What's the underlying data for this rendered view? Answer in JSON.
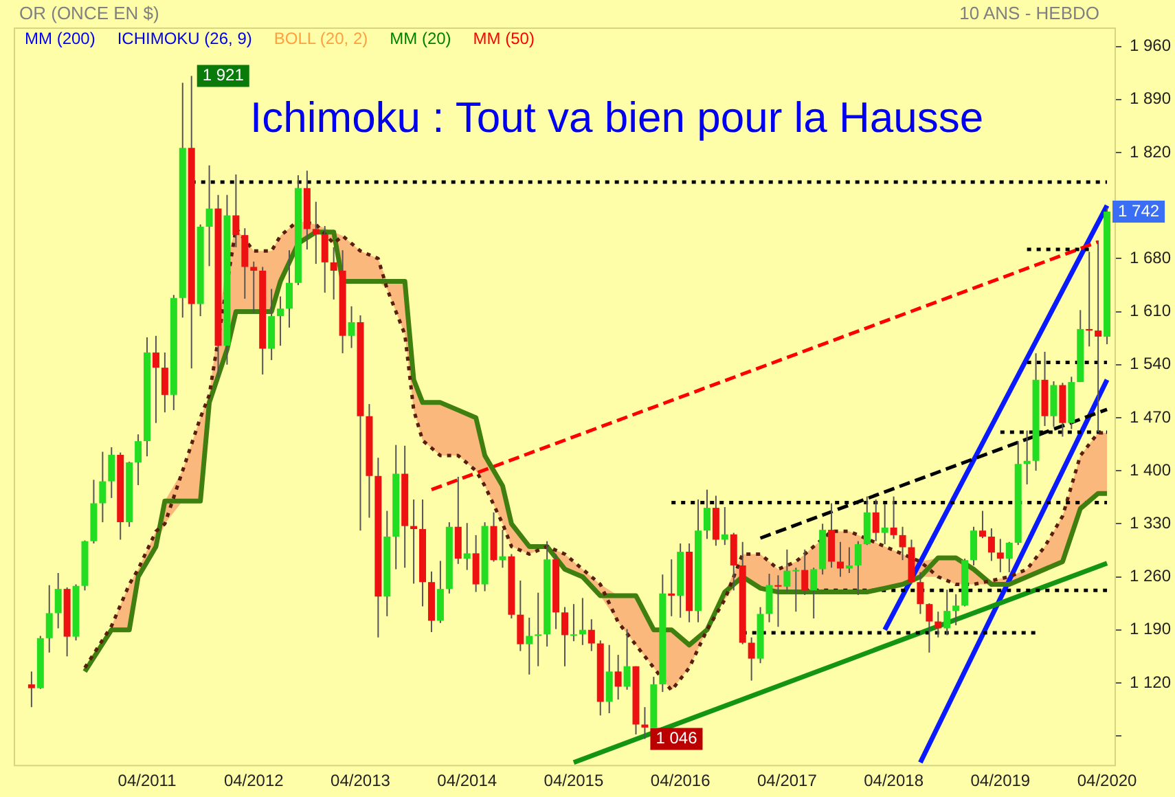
{
  "chart_data": {
    "type": "candlestick",
    "title": "Ichimoku : Tout va bien pour la Hausse",
    "subtitle": "OR (ONCE EN $)",
    "annotations": [
      "10 ANS - HEBDO",
      {
        "text": "1 921",
        "x": "2011-09",
        "y": 1921
      },
      {
        "text": "1 742",
        "x": "2020-04",
        "y": 1742
      },
      {
        "text": "1 046",
        "x": "2015-12",
        "y": 1046
      }
    ],
    "xlim": [
      "2010-01",
      "2020-05"
    ],
    "xticks": [
      {
        "value": "2011-04",
        "label": "04/2011"
      },
      {
        "value": "2012-04",
        "label": "04/2012"
      },
      {
        "value": "2013-04",
        "label": "04/2013"
      },
      {
        "value": "2014-04",
        "label": "04/2014"
      },
      {
        "value": "2015-04",
        "label": "04/2015"
      },
      {
        "value": "2016-04",
        "label": "04/2016"
      },
      {
        "value": "2017-04",
        "label": "04/2017"
      },
      {
        "value": "2018-04",
        "label": "04/2018"
      },
      {
        "value": "2019-04",
        "label": "04/2019"
      },
      {
        "value": "2020-04",
        "label": "04/2020"
      }
    ],
    "ylim": [
      1010,
      1985
    ],
    "yticks": [
      {
        "value": 1050,
        "label": null
      },
      {
        "value": 1120,
        "label": "1 120"
      },
      {
        "value": 1190,
        "label": "1 190"
      },
      {
        "value": 1260,
        "label": "1 260"
      },
      {
        "value": 1330,
        "label": "1 330"
      },
      {
        "value": 1400,
        "label": "1 400"
      },
      {
        "value": 1470,
        "label": "1 470"
      },
      {
        "value": 1540,
        "label": "1 540"
      },
      {
        "value": 1610,
        "label": "1 610"
      },
      {
        "value": 1680,
        "label": "1 680"
      },
      {
        "value": 1750,
        "label": null
      },
      {
        "value": 1820,
        "label": "1 820"
      },
      {
        "value": 1890,
        "label": "1 890"
      },
      {
        "value": 1960,
        "label": "1 960"
      }
    ],
    "x": [
      "2010-03",
      "2010-04",
      "2010-05",
      "2010-06",
      "2010-07",
      "2010-08",
      "2010-09",
      "2010-10",
      "2010-11",
      "2010-12",
      "2011-01",
      "2011-02",
      "2011-03",
      "2011-04",
      "2011-05",
      "2011-06",
      "2011-07",
      "2011-08",
      "2011-09",
      "2011-10",
      "2011-11",
      "2011-12",
      "2012-01",
      "2012-02",
      "2012-03",
      "2012-04",
      "2012-05",
      "2012-06",
      "2012-07",
      "2012-08",
      "2012-09",
      "2012-10",
      "2012-11",
      "2012-12",
      "2013-01",
      "2013-02",
      "2013-03",
      "2013-04",
      "2013-05",
      "2013-06",
      "2013-07",
      "2013-08",
      "2013-09",
      "2013-10",
      "2013-11",
      "2013-12",
      "2014-01",
      "2014-02",
      "2014-03",
      "2014-04",
      "2014-05",
      "2014-06",
      "2014-07",
      "2014-08",
      "2014-09",
      "2014-10",
      "2014-11",
      "2014-12",
      "2015-01",
      "2015-02",
      "2015-03",
      "2015-04",
      "2015-05",
      "2015-06",
      "2015-07",
      "2015-08",
      "2015-09",
      "2015-10",
      "2015-11",
      "2015-12",
      "2016-01",
      "2016-02",
      "2016-03",
      "2016-04",
      "2016-05",
      "2016-06",
      "2016-07",
      "2016-08",
      "2016-09",
      "2016-10",
      "2016-11",
      "2016-12",
      "2017-01",
      "2017-02",
      "2017-03",
      "2017-04",
      "2017-05",
      "2017-06",
      "2017-07",
      "2017-08",
      "2017-09",
      "2017-10",
      "2017-11",
      "2017-12",
      "2018-01",
      "2018-02",
      "2018-03",
      "2018-04",
      "2018-05",
      "2018-06",
      "2018-07",
      "2018-08",
      "2018-09",
      "2018-10",
      "2018-11",
      "2018-12",
      "2019-01",
      "2019-02",
      "2019-03",
      "2019-04",
      "2019-05",
      "2019-06",
      "2019-07",
      "2019-08",
      "2019-09",
      "2019-10",
      "2019-11",
      "2019-12",
      "2020-01",
      "2020-02",
      "2020-03",
      "2020-04"
    ],
    "ohlc": [
      [
        1118,
        1135,
        1088,
        1113
      ],
      [
        1113,
        1182,
        1112,
        1179
      ],
      [
        1179,
        1249,
        1160,
        1212
      ],
      [
        1212,
        1265,
        1192,
        1244
      ],
      [
        1244,
        1246,
        1155,
        1181
      ],
      [
        1181,
        1250,
        1176,
        1248
      ],
      [
        1248,
        1308,
        1242,
        1307
      ],
      [
        1307,
        1388,
        1304,
        1357
      ],
      [
        1357,
        1425,
        1332,
        1386
      ],
      [
        1386,
        1431,
        1364,
        1421
      ],
      [
        1421,
        1424,
        1309,
        1332
      ],
      [
        1332,
        1412,
        1326,
        1411
      ],
      [
        1411,
        1448,
        1381,
        1439
      ],
      [
        1439,
        1576,
        1419,
        1556
      ],
      [
        1556,
        1578,
        1463,
        1536
      ],
      [
        1536,
        1556,
        1477,
        1500
      ],
      [
        1500,
        1632,
        1480,
        1628
      ],
      [
        1628,
        1912,
        1602,
        1826
      ],
      [
        1826,
        1921,
        1535,
        1620
      ],
      [
        1620,
        1725,
        1604,
        1722
      ],
      [
        1722,
        1803,
        1670,
        1746
      ],
      [
        1746,
        1764,
        1523,
        1565
      ],
      [
        1565,
        1764,
        1540,
        1737
      ],
      [
        1737,
        1791,
        1695,
        1711
      ],
      [
        1711,
        1720,
        1627,
        1669
      ],
      [
        1669,
        1676,
        1608,
        1664
      ],
      [
        1664,
        1669,
        1527,
        1561
      ],
      [
        1561,
        1640,
        1546,
        1604
      ],
      [
        1604,
        1630,
        1565,
        1614
      ],
      [
        1614,
        1691,
        1589,
        1648
      ],
      [
        1648,
        1790,
        1645,
        1773
      ],
      [
        1773,
        1796,
        1692,
        1719
      ],
      [
        1719,
        1755,
        1673,
        1712
      ],
      [
        1712,
        1723,
        1635,
        1675
      ],
      [
        1675,
        1695,
        1626,
        1664
      ],
      [
        1664,
        1691,
        1555,
        1578
      ],
      [
        1578,
        1617,
        1562,
        1596
      ],
      [
        1596,
        1605,
        1321,
        1472
      ],
      [
        1472,
        1488,
        1338,
        1393
      ],
      [
        1393,
        1417,
        1180,
        1234
      ],
      [
        1234,
        1347,
        1208,
        1313
      ],
      [
        1313,
        1434,
        1270,
        1396
      ],
      [
        1396,
        1433,
        1272,
        1327
      ],
      [
        1327,
        1362,
        1251,
        1323
      ],
      [
        1323,
        1362,
        1221,
        1253
      ],
      [
        1253,
        1267,
        1187,
        1202
      ],
      [
        1202,
        1281,
        1199,
        1244
      ],
      [
        1244,
        1332,
        1238,
        1326
      ],
      [
        1326,
        1392,
        1277,
        1284
      ],
      [
        1284,
        1331,
        1269,
        1291
      ],
      [
        1291,
        1315,
        1240,
        1250
      ],
      [
        1250,
        1332,
        1241,
        1327
      ],
      [
        1327,
        1345,
        1280,
        1282
      ],
      [
        1282,
        1322,
        1272,
        1287
      ],
      [
        1287,
        1290,
        1205,
        1210
      ],
      [
        1210,
        1255,
        1162,
        1171
      ],
      [
        1171,
        1206,
        1131,
        1182
      ],
      [
        1182,
        1239,
        1142,
        1184
      ],
      [
        1184,
        1307,
        1168,
        1283
      ],
      [
        1283,
        1290,
        1191,
        1213
      ],
      [
        1213,
        1220,
        1142,
        1183
      ],
      [
        1183,
        1224,
        1175,
        1184
      ],
      [
        1184,
        1232,
        1170,
        1190
      ],
      [
        1190,
        1204,
        1162,
        1172
      ],
      [
        1172,
        1176,
        1077,
        1095
      ],
      [
        1095,
        1170,
        1080,
        1135
      ],
      [
        1135,
        1157,
        1098,
        1115
      ],
      [
        1115,
        1191,
        1111,
        1142
      ],
      [
        1142,
        1142,
        1052,
        1065
      ],
      [
        1065,
        1088,
        1046,
        1061
      ],
      [
        1061,
        1128,
        1061,
        1118
      ],
      [
        1118,
        1263,
        1108,
        1238
      ],
      [
        1238,
        1283,
        1208,
        1235
      ],
      [
        1235,
        1304,
        1206,
        1293
      ],
      [
        1293,
        1304,
        1200,
        1215
      ],
      [
        1215,
        1362,
        1200,
        1321
      ],
      [
        1321,
        1375,
        1310,
        1351
      ],
      [
        1351,
        1367,
        1301,
        1309
      ],
      [
        1309,
        1352,
        1302,
        1316
      ],
      [
        1316,
        1318,
        1242,
        1275
      ],
      [
        1275,
        1306,
        1171,
        1173
      ],
      [
        1173,
        1180,
        1123,
        1152
      ],
      [
        1152,
        1220,
        1146,
        1211
      ],
      [
        1211,
        1264,
        1200,
        1249
      ],
      [
        1249,
        1262,
        1194,
        1247
      ],
      [
        1247,
        1296,
        1240,
        1268
      ],
      [
        1268,
        1272,
        1214,
        1269
      ],
      [
        1269,
        1296,
        1236,
        1242
      ],
      [
        1242,
        1272,
        1205,
        1270
      ],
      [
        1270,
        1330,
        1263,
        1322
      ],
      [
        1322,
        1357,
        1272,
        1280
      ],
      [
        1280,
        1306,
        1260,
        1271
      ],
      [
        1271,
        1299,
        1265,
        1275
      ],
      [
        1275,
        1307,
        1236,
        1303
      ],
      [
        1303,
        1366,
        1302,
        1345
      ],
      [
        1345,
        1362,
        1307,
        1318
      ],
      [
        1318,
        1356,
        1303,
        1325
      ],
      [
        1325,
        1366,
        1310,
        1315
      ],
      [
        1315,
        1326,
        1282,
        1299
      ],
      [
        1299,
        1309,
        1250,
        1253
      ],
      [
        1253,
        1266,
        1211,
        1224
      ],
      [
        1224,
        1225,
        1160,
        1201
      ],
      [
        1201,
        1214,
        1180,
        1192
      ],
      [
        1192,
        1243,
        1183,
        1215
      ],
      [
        1215,
        1237,
        1196,
        1222
      ],
      [
        1222,
        1284,
        1221,
        1282
      ],
      [
        1282,
        1326,
        1275,
        1321
      ],
      [
        1321,
        1347,
        1311,
        1313
      ],
      [
        1313,
        1324,
        1281,
        1292
      ],
      [
        1292,
        1310,
        1266,
        1284
      ],
      [
        1284,
        1306,
        1266,
        1305
      ],
      [
        1305,
        1439,
        1302,
        1409
      ],
      [
        1409,
        1453,
        1382,
        1413
      ],
      [
        1413,
        1555,
        1400,
        1520
      ],
      [
        1520,
        1557,
        1459,
        1472
      ],
      [
        1472,
        1518,
        1458,
        1513
      ],
      [
        1513,
        1516,
        1445,
        1463
      ],
      [
        1463,
        1524,
        1455,
        1517
      ],
      [
        1517,
        1612,
        1517,
        1587
      ],
      [
        1587,
        1689,
        1564,
        1585
      ],
      [
        1585,
        1704,
        1451,
        1577
      ],
      [
        1577,
        1747,
        1567,
        1742
      ]
    ],
    "colors": [
      "#ee1111",
      "#22dd22",
      "#22dd22",
      "#22dd22",
      "#ee1111",
      "#22dd22",
      "#22dd22",
      "#22dd22",
      "#22dd22",
      "#22dd22",
      "#ee1111",
      "#22dd22",
      "#22dd22",
      "#22dd22",
      "#ee1111",
      "#ee1111",
      "#22dd22",
      "#22dd22",
      "#ee1111",
      "#22dd22",
      "#22dd22",
      "#ee1111",
      "#22dd22",
      "#ee1111",
      "#ee1111",
      "#ee1111",
      "#ee1111",
      "#22dd22",
      "#22dd22",
      "#22dd22",
      "#22dd22",
      "#ee1111",
      "#ee1111",
      "#ee1111",
      "#ee1111",
      "#ee1111",
      "#22dd22",
      "#ee1111",
      "#ee1111",
      "#ee1111",
      "#22dd22",
      "#22dd22",
      "#ee1111",
      "#ee1111",
      "#ee1111",
      "#ee1111",
      "#22dd22",
      "#22dd22",
      "#ee1111",
      "#22dd22",
      "#ee1111",
      "#22dd22",
      "#ee1111",
      "#22dd22",
      "#ee1111",
      "#ee1111",
      "#22dd22",
      "#22dd22",
      "#22dd22",
      "#ee1111",
      "#ee1111",
      "#22dd22",
      "#22dd22",
      "#ee1111",
      "#ee1111",
      "#22dd22",
      "#ee1111",
      "#22dd22",
      "#ee1111",
      "#ee1111",
      "#22dd22",
      "#22dd22",
      "#ee1111",
      "#22dd22",
      "#ee1111",
      "#22dd22",
      "#22dd22",
      "#ee1111",
      "#22dd22",
      "#ee1111",
      "#ee1111",
      "#ee1111",
      "#22dd22",
      "#22dd22",
      "#ee1111",
      "#22dd22",
      "#22dd22",
      "#ee1111",
      "#22dd22",
      "#22dd22",
      "#ee1111",
      "#ee1111",
      "#22dd22",
      "#22dd22",
      "#22dd22",
      "#ee1111",
      "#22dd22",
      "#ee1111",
      "#ee1111",
      "#ee1111",
      "#ee1111",
      "#ee1111",
      "#ee1111",
      "#22dd22",
      "#22dd22",
      "#22dd22",
      "#22dd22",
      "#ee1111",
      "#ee1111",
      "#ee1111",
      "#22dd22",
      "#22dd22",
      "#22dd22",
      "#22dd22",
      "#ee1111",
      "#22dd22",
      "#ee1111",
      "#22dd22",
      "#22dd22",
      "#ee1111",
      "#ee1111",
      "#22dd22"
    ],
    "series": [
      {
        "name": "MM (200)",
        "type": "line",
        "color": "#0000ff",
        "values": [
          null,
          null,
          null,
          null,
          null,
          null,
          null,
          null,
          null,
          null,
          null,
          null,
          null,
          null,
          null,
          null,
          null,
          null,
          null,
          null,
          null,
          null,
          null,
          null,
          null,
          null,
          null,
          null,
          null,
          null,
          null,
          null,
          null,
          null,
          null,
          null,
          null,
          null,
          null,
          null,
          null,
          null,
          null,
          null,
          null,
          null,
          null,
          null,
          null,
          null,
          null,
          null,
          null,
          null,
          null,
          null,
          null,
          null,
          null,
          null,
          null,
          null,
          null,
          null,
          null,
          null,
          null,
          null,
          null,
          null,
          null,
          null,
          null,
          null,
          null,
          null,
          null,
          null,
          null,
          null,
          null,
          null,
          null,
          null,
          null,
          null,
          null,
          null,
          null,
          null,
          null,
          null,
          null,
          null,
          null,
          null,
          null,
          null,
          null,
          null,
          null,
          null,
          null,
          null,
          null,
          null,
          null,
          null,
          null,
          null,
          null,
          null,
          null,
          null,
          null,
          null,
          null,
          null,
          null,
          null,
          null,
          null
        ]
      },
      {
        "name": "ICHIMOKU (26, 9)",
        "type": "line",
        "color": "#0000ee",
        "values": [
          null,
          null,
          null,
          null,
          null,
          null,
          null,
          null,
          null,
          null,
          null,
          null,
          null,
          null,
          null,
          null,
          null,
          null,
          null,
          null,
          null,
          null,
          null,
          null,
          null,
          null,
          null,
          null,
          null,
          null,
          null,
          null,
          null,
          null,
          null,
          null,
          null,
          null,
          null,
          null,
          null,
          null,
          null,
          null,
          null,
          null,
          null,
          null,
          null,
          null,
          null,
          null,
          null,
          null,
          null,
          null,
          null,
          null,
          null,
          null,
          null,
          null,
          null,
          null,
          null,
          null,
          null,
          null,
          null,
          null,
          null,
          null,
          null,
          null,
          null,
          null,
          null,
          null,
          null,
          null,
          null,
          null,
          null,
          null,
          null,
          null,
          null,
          null,
          null,
          null,
          null,
          null,
          null,
          null,
          null,
          null,
          null,
          null,
          null,
          null,
          null,
          null,
          null,
          null,
          null,
          null,
          null,
          null,
          null,
          null,
          null,
          null,
          null,
          null,
          null,
          null,
          null,
          null,
          null,
          null,
          null,
          null
        ]
      },
      {
        "name": "BOLL (20, 2)",
        "type": "line",
        "color": "#ffa040",
        "values": [
          null,
          null,
          null,
          null,
          null,
          null,
          null,
          null,
          null,
          null,
          null,
          null,
          null,
          null,
          null,
          null,
          null,
          null,
          null,
          null,
          null,
          null,
          null,
          null,
          null,
          null,
          null,
          null,
          null,
          null,
          null,
          null,
          null,
          null,
          null,
          null,
          null,
          null,
          null,
          null,
          null,
          null,
          null,
          null,
          null,
          null,
          null,
          null,
          null,
          null,
          null,
          null,
          null,
          null,
          null,
          null,
          null,
          null,
          null,
          null,
          null,
          null,
          null,
          null,
          null,
          null,
          null,
          null,
          null,
          null,
          null,
          null,
          null,
          null,
          null,
          null,
          null,
          null,
          null,
          null,
          null,
          null,
          null,
          null,
          null,
          null,
          null,
          null,
          null,
          null,
          null,
          null,
          null,
          null,
          null,
          null,
          null,
          null,
          null,
          null,
          null,
          null,
          null,
          null,
          null,
          null,
          null,
          null,
          null,
          null,
          null,
          null,
          null,
          null,
          null,
          null,
          null,
          null,
          null,
          null,
          null,
          null
        ]
      },
      {
        "name": "MM (20)",
        "type": "line",
        "color": "#008000",
        "values": [
          null,
          null,
          null,
          null,
          null,
          null,
          null,
          null,
          null,
          null,
          null,
          null,
          null,
          null,
          null,
          null,
          null,
          null,
          null,
          null,
          null,
          null,
          null,
          null,
          null,
          null,
          null,
          null,
          null,
          null,
          null,
          null,
          null,
          null,
          null,
          null,
          null,
          null,
          null,
          null,
          null,
          null,
          null,
          null,
          null,
          null,
          null,
          null,
          null,
          null,
          null,
          null,
          null,
          null,
          null,
          null,
          null,
          null,
          null,
          null,
          null,
          null,
          null,
          null,
          null,
          null,
          null,
          null,
          null,
          null,
          null,
          null,
          null,
          null,
          null,
          null,
          null,
          null,
          null,
          null,
          null,
          null,
          null,
          null,
          null,
          null,
          null,
          null,
          null,
          null,
          null,
          null,
          null,
          null,
          null,
          null,
          null,
          null,
          null,
          null,
          null,
          null,
          null,
          null,
          null,
          null,
          null,
          null,
          null,
          null,
          null,
          null,
          null,
          null,
          null,
          null,
          null,
          null,
          null,
          null,
          null,
          null
        ]
      },
      {
        "name": "MM (50)",
        "type": "line",
        "color": "#ff0000",
        "values": [
          null,
          null,
          null,
          null,
          null,
          null,
          null,
          null,
          null,
          null,
          null,
          null,
          null,
          null,
          null,
          null,
          null,
          null,
          null,
          null,
          null,
          null,
          null,
          null,
          null,
          null,
          null,
          null,
          null,
          null,
          null,
          null,
          null,
          null,
          null,
          null,
          null,
          null,
          null,
          null,
          null,
          null,
          null,
          null,
          null,
          null,
          null,
          null,
          null,
          null,
          null,
          null,
          null,
          null,
          null,
          null,
          null,
          null,
          null,
          null,
          null,
          null,
          null,
          null,
          null,
          null,
          null,
          null,
          null,
          null,
          null,
          null,
          null,
          null,
          null,
          null,
          null,
          null,
          null,
          null,
          null,
          null,
          null,
          null,
          null,
          null,
          null,
          null,
          null,
          null,
          null,
          null,
          null,
          null,
          null,
          null,
          null,
          null,
          null,
          null,
          null,
          null,
          null,
          null,
          null,
          null,
          null,
          null,
          null,
          null,
          null,
          null,
          null,
          null,
          null,
          null,
          null,
          null,
          null,
          null,
          null,
          null
        ]
      },
      {
        "type": "line",
        "color": "#5a1e0e",
        "line_style": "dotted",
        "x": [
          "2010-09",
          "2010-12",
          "2011-02",
          "2011-03",
          "2011-05",
          "2011-06",
          "2011-08",
          "2011-10",
          "2011-11",
          "2012-01",
          "2012-02",
          "2012-04",
          "2012-06",
          "2012-07",
          "2012-09",
          "2012-11",
          "2013-01",
          "2013-02",
          "2013-04",
          "2013-06",
          "2013-07",
          "2013-09",
          "2013-10",
          "2013-11",
          "2014-01",
          "2014-03",
          "2014-05",
          "2014-06",
          "2014-08",
          "2014-09",
          "2014-11",
          "2015-01",
          "2015-03",
          "2015-05",
          "2015-07",
          "2015-09",
          "2015-11",
          "2016-01",
          "2016-03",
          "2016-05",
          "2016-07",
          "2016-09",
          "2016-11",
          "2017-01",
          "2017-03",
          "2017-05",
          "2017-07",
          "2017-09",
          "2017-11",
          "2018-01",
          "2018-03",
          "2018-05",
          "2018-07",
          "2018-09",
          "2018-11",
          "2019-01",
          "2019-03",
          "2019-05",
          "2019-07",
          "2019-09",
          "2019-11",
          "2020-01",
          "2020-03",
          "2020-04"
        ],
        "values": [
          1140,
          1195,
          1250,
          1270,
          1320,
          1330,
          1400,
          1470,
          1500,
          null,
          1720,
          1690,
          1690,
          1710,
          1730,
          1725,
          1700,
          1710,
          1690,
          1680,
          1640,
          1580,
          1480,
          1440,
          1420,
          1420,
          1400,
          1380,
          1330,
          1300,
          1290,
          1300,
          1290,
          1270,
          1250,
          1200,
          1170,
          1140,
          1110,
          1140,
          1190,
          1230,
          1290,
          1290,
          1270,
          1280,
          1300,
          1320,
          1320,
          1310,
          1300,
          1290,
          1280,
          1260,
          1250,
          1250,
          1255,
          1260,
          1270,
          1300,
          1340,
          1420,
          1450,
          1450
        ]
      },
      {
        "type": "line",
        "color": "#3f7f0f",
        "x": [
          "2010-09",
          "2010-12",
          "2011-02",
          "2011-03",
          "2011-05",
          "2011-06",
          "2011-08",
          "2011-10",
          "2011-11",
          "2012-01",
          "2012-02",
          "2012-04",
          "2012-06",
          "2012-07",
          "2012-09",
          "2012-11",
          "2013-01",
          "2013-02",
          "2013-04",
          "2013-06",
          "2013-07",
          "2013-09",
          "2013-10",
          "2013-11",
          "2014-01",
          "2014-03",
          "2014-05",
          "2014-06",
          "2014-08",
          "2014-09",
          "2014-11",
          "2015-01",
          "2015-03",
          "2015-05",
          "2015-07",
          "2015-09",
          "2015-11",
          "2016-01",
          "2016-03",
          "2016-05",
          "2016-07",
          "2016-09",
          "2016-11",
          "2017-01",
          "2017-03",
          "2017-05",
          "2017-07",
          "2017-09",
          "2017-11",
          "2018-01",
          "2018-03",
          "2018-05",
          "2018-07",
          "2018-09",
          "2018-11",
          "2019-01",
          "2019-03",
          "2019-05",
          "2019-07",
          "2019-09",
          "2019-11",
          "2020-01",
          "2020-03",
          "2020-04"
        ],
        "values": [
          1135,
          1190,
          1190,
          1260,
          1300,
          1360,
          1360,
          1360,
          1490,
          1560,
          1610,
          1610,
          1610,
          1650,
          1700,
          1715,
          1715,
          1650,
          1650,
          1650,
          1650,
          1650,
          1520,
          1490,
          1490,
          1480,
          1470,
          1420,
          1380,
          1330,
          1300,
          1300,
          1270,
          1260,
          1235,
          1235,
          1235,
          1190,
          1190,
          1170,
          1190,
          1240,
          1260,
          1245,
          1240,
          1240,
          1240,
          1240,
          1240,
          1240,
          1245,
          1250,
          1260,
          1285,
          1285,
          1270,
          1250,
          1250,
          1260,
          1270,
          1280,
          1350,
          1370,
          1370
        ],
        "lower": [
          1135,
          1190,
          1190,
          1260,
          1300,
          1330,
          1360,
          1360,
          1490,
          1560,
          1610,
          1610,
          1610,
          1650,
          1700,
          1715,
          1700,
          1650,
          1650,
          1650,
          1640,
          1580,
          1480,
          1440,
          1420,
          1420,
          1400,
          1380,
          1330,
          1300,
          1290,
          1300,
          1270,
          1260,
          1235,
          1200,
          1170,
          1140,
          1110,
          1140,
          1190,
          1230,
          1260,
          1245,
          1240,
          1240,
          1240,
          1240,
          1240,
          1240,
          1245,
          1250,
          1260,
          1260,
          1250,
          1250,
          1250,
          1250,
          1260,
          1270,
          1280,
          1350,
          1370,
          1370
        ],
        "upper": [
          1140,
          1195,
          1250,
          1270,
          1320,
          1360,
          1400,
          1470,
          1500,
          1680,
          1720,
          1690,
          1690,
          1710,
          1730,
          1725,
          1715,
          1710,
          1690,
          1680,
          1650,
          1650,
          1520,
          1490,
          1490,
          1480,
          1470,
          1420,
          1380,
          1330,
          1300,
          1300,
          1290,
          1270,
          1250,
          1235,
          1235,
          1190,
          1190,
          1170,
          1190,
          1240,
          1290,
          1290,
          1270,
          1280,
          1300,
          1320,
          1320,
          1310,
          1300,
          1290,
          1280,
          1285,
          1285,
          1270,
          1255,
          1260,
          1270,
          1300,
          1340,
          1420,
          1450,
          1450
        ]
      },
      {
        "type": "line",
        "color": "#000000",
        "line_style": "dotted",
        "x": [
          "2011-09",
          "2020-04"
        ],
        "values": [
          1781,
          1781
        ]
      },
      {
        "type": "line",
        "color": "#000000",
        "line_style": "dotted",
        "x": [
          "2016-03",
          "2020-04"
        ],
        "values": [
          1358,
          1358
        ]
      },
      {
        "type": "line",
        "color": "#000000",
        "line_style": "dotted",
        "x": [
          "2016-11",
          "2019-08"
        ],
        "values": [
          1186,
          1186
        ]
      },
      {
        "type": "line",
        "color": "#000000",
        "line_style": "dotted",
        "x": [
          "2017-06",
          "2020-04"
        ],
        "values": [
          1242,
          1242
        ]
      },
      {
        "type": "line",
        "color": "#000000",
        "line_style": "dotted",
        "x": [
          "2019-04",
          "2020-04"
        ],
        "values": [
          1451,
          1451
        ]
      },
      {
        "type": "line",
        "color": "#000000",
        "line_style": "dotted",
        "x": [
          "2019-07",
          "2020-04"
        ],
        "values": [
          1543,
          1543
        ]
      },
      {
        "type": "line",
        "color": "#000000",
        "line_style": "dotted",
        "x": [
          "2019-07",
          "2020-02"
        ],
        "values": [
          1692,
          1692
        ]
      },
      {
        "type": "line",
        "color": "#000000",
        "line_style": "dashed",
        "x": [
          "2017-01",
          "2020-04"
        ],
        "values": [
          1311,
          1481
        ]
      },
      {
        "type": "line",
        "color": "#ff0000",
        "line_style": "dashed",
        "x": [
          "2013-12",
          "2020-03"
        ],
        "values": [
          1375,
          1702
        ]
      },
      {
        "type": "line",
        "color": "#149414",
        "line_style": "solid",
        "x": [
          "2015-04",
          "2020-04"
        ],
        "values": [
          1015,
          1278
        ]
      },
      {
        "type": "line",
        "color": "#0a1aff",
        "line_style": "solid",
        "x": [
          "2018-03",
          "2020-04"
        ],
        "values": [
          1190,
          1750
        ]
      },
      {
        "type": "line",
        "color": "#0a1aff",
        "line_style": "solid",
        "x": [
          "2018-07",
          "2020-04"
        ],
        "values": [
          1015,
          1520
        ]
      }
    ]
  }
}
